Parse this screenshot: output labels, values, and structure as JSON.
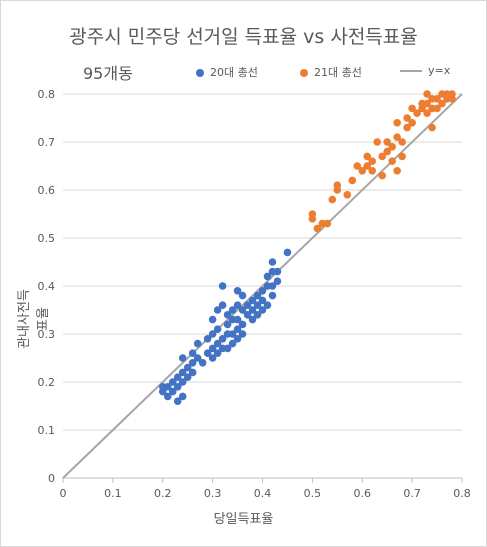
{
  "chart_data": {
    "type": "scatter",
    "title": "광주시 민주당 선거일 득표율 vs 사전득표율",
    "subtitle": "95개동",
    "xlabel": "당일득표율",
    "ylabel": "관내사전득표율",
    "xlim": [
      0,
      0.8
    ],
    "ylim": [
      0,
      0.8
    ],
    "x_ticks": [
      "0",
      "0.1",
      "0.2",
      "0.3",
      "0.4",
      "0.5",
      "0.6",
      "0.7",
      "0.8"
    ],
    "y_ticks": [
      "0",
      "0.1",
      "0.2",
      "0.3",
      "0.4",
      "0.5",
      "0.6",
      "0.7",
      "0.8"
    ],
    "grid": "horizontal",
    "legend_position": "top",
    "series": [
      {
        "name": "20대 총선",
        "color": "#4472C4",
        "points": [
          [
            0.2,
            0.19
          ],
          [
            0.2,
            0.18
          ],
          [
            0.21,
            0.17
          ],
          [
            0.21,
            0.19
          ],
          [
            0.22,
            0.18
          ],
          [
            0.22,
            0.2
          ],
          [
            0.23,
            0.16
          ],
          [
            0.23,
            0.19
          ],
          [
            0.23,
            0.21
          ],
          [
            0.24,
            0.17
          ],
          [
            0.24,
            0.2
          ],
          [
            0.24,
            0.22
          ],
          [
            0.24,
            0.25
          ],
          [
            0.25,
            0.21
          ],
          [
            0.25,
            0.23
          ],
          [
            0.26,
            0.22
          ],
          [
            0.26,
            0.24
          ],
          [
            0.26,
            0.26
          ],
          [
            0.27,
            0.25
          ],
          [
            0.27,
            0.28
          ],
          [
            0.28,
            0.24
          ],
          [
            0.29,
            0.26
          ],
          [
            0.29,
            0.29
          ],
          [
            0.3,
            0.25
          ],
          [
            0.3,
            0.27
          ],
          [
            0.3,
            0.3
          ],
          [
            0.3,
            0.33
          ],
          [
            0.31,
            0.26
          ],
          [
            0.31,
            0.28
          ],
          [
            0.31,
            0.31
          ],
          [
            0.31,
            0.35
          ],
          [
            0.32,
            0.27
          ],
          [
            0.32,
            0.29
          ],
          [
            0.32,
            0.36
          ],
          [
            0.32,
            0.4
          ],
          [
            0.33,
            0.27
          ],
          [
            0.33,
            0.3
          ],
          [
            0.33,
            0.32
          ],
          [
            0.33,
            0.34
          ],
          [
            0.34,
            0.28
          ],
          [
            0.34,
            0.3
          ],
          [
            0.34,
            0.33
          ],
          [
            0.34,
            0.35
          ],
          [
            0.35,
            0.29
          ],
          [
            0.35,
            0.31
          ],
          [
            0.35,
            0.33
          ],
          [
            0.35,
            0.36
          ],
          [
            0.35,
            0.39
          ],
          [
            0.36,
            0.3
          ],
          [
            0.36,
            0.32
          ],
          [
            0.36,
            0.35
          ],
          [
            0.36,
            0.38
          ],
          [
            0.37,
            0.34
          ],
          [
            0.37,
            0.36
          ],
          [
            0.38,
            0.33
          ],
          [
            0.38,
            0.35
          ],
          [
            0.38,
            0.37
          ],
          [
            0.39,
            0.34
          ],
          [
            0.39,
            0.36
          ],
          [
            0.39,
            0.38
          ],
          [
            0.4,
            0.35
          ],
          [
            0.4,
            0.37
          ],
          [
            0.4,
            0.39
          ],
          [
            0.41,
            0.36
          ],
          [
            0.41,
            0.4
          ],
          [
            0.41,
            0.42
          ],
          [
            0.42,
            0.38
          ],
          [
            0.42,
            0.4
          ],
          [
            0.42,
            0.43
          ],
          [
            0.42,
            0.45
          ],
          [
            0.43,
            0.41
          ],
          [
            0.43,
            0.43
          ],
          [
            0.45,
            0.47
          ]
        ]
      },
      {
        "name": "21대 총선",
        "color": "#ED7D31",
        "points": [
          [
            0.5,
            0.54
          ],
          [
            0.5,
            0.55
          ],
          [
            0.51,
            0.52
          ],
          [
            0.52,
            0.53
          ],
          [
            0.53,
            0.53
          ],
          [
            0.54,
            0.58
          ],
          [
            0.55,
            0.6
          ],
          [
            0.55,
            0.61
          ],
          [
            0.57,
            0.59
          ],
          [
            0.58,
            0.62
          ],
          [
            0.59,
            0.65
          ],
          [
            0.6,
            0.64
          ],
          [
            0.61,
            0.65
          ],
          [
            0.61,
            0.67
          ],
          [
            0.62,
            0.64
          ],
          [
            0.62,
            0.66
          ],
          [
            0.63,
            0.7
          ],
          [
            0.64,
            0.63
          ],
          [
            0.64,
            0.67
          ],
          [
            0.65,
            0.68
          ],
          [
            0.65,
            0.7
          ],
          [
            0.66,
            0.66
          ],
          [
            0.66,
            0.69
          ],
          [
            0.67,
            0.64
          ],
          [
            0.67,
            0.71
          ],
          [
            0.67,
            0.74
          ],
          [
            0.68,
            0.67
          ],
          [
            0.68,
            0.7
          ],
          [
            0.69,
            0.73
          ],
          [
            0.69,
            0.75
          ],
          [
            0.7,
            0.74
          ],
          [
            0.7,
            0.77
          ],
          [
            0.71,
            0.76
          ],
          [
            0.72,
            0.77
          ],
          [
            0.72,
            0.78
          ],
          [
            0.73,
            0.76
          ],
          [
            0.73,
            0.78
          ],
          [
            0.73,
            0.8
          ],
          [
            0.74,
            0.73
          ],
          [
            0.74,
            0.77
          ],
          [
            0.74,
            0.79
          ],
          [
            0.75,
            0.77
          ],
          [
            0.75,
            0.79
          ],
          [
            0.76,
            0.78
          ],
          [
            0.76,
            0.8
          ],
          [
            0.77,
            0.79
          ],
          [
            0.77,
            0.8
          ],
          [
            0.78,
            0.79
          ],
          [
            0.78,
            0.8
          ]
        ]
      }
    ],
    "reference_line": {
      "name": "y=x",
      "color": "#A6A6A6",
      "from": [
        0,
        0
      ],
      "to": [
        0.8,
        0.8
      ]
    }
  }
}
